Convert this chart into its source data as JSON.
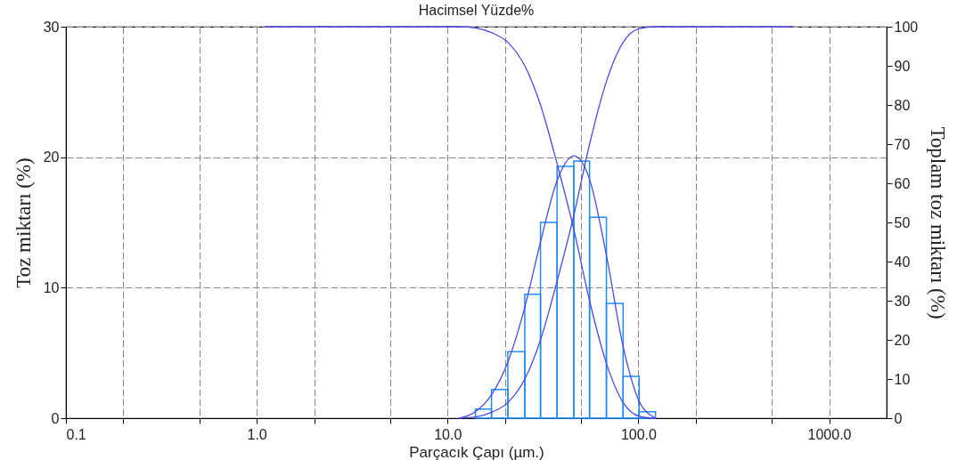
{
  "chart_data": {
    "type": "histogram",
    "title": "Hacimsel Yüzde%",
    "xlabel": "Parçacık Çapı (µm.)",
    "ylabel": "Toz miktarı (%)",
    "y2label": "Toplam toz miktarı (%)",
    "log": "x",
    "grid": true,
    "xlim": [
      0.1,
      2000
    ],
    "xticks": [
      {
        "value": 0.1,
        "label": "0.1"
      },
      {
        "value": 0.2,
        "label": null
      },
      {
        "value": 0.5,
        "label": null
      },
      {
        "value": 1,
        "label": "1.0"
      },
      {
        "value": 2,
        "label": null
      },
      {
        "value": 5,
        "label": null
      },
      {
        "value": 10,
        "label": "10.0"
      },
      {
        "value": 20,
        "label": null
      },
      {
        "value": 50,
        "label": null
      },
      {
        "value": 100,
        "label": "100.0"
      },
      {
        "value": 200,
        "label": null
      },
      {
        "value": 500,
        "label": null
      },
      {
        "value": 1000,
        "label": "1000.0"
      }
    ],
    "ylim": [
      0,
      30
    ],
    "yticks": [
      0,
      10,
      20,
      30
    ],
    "y2lim": [
      0,
      100
    ],
    "y2ticks": [
      0,
      10,
      20,
      30,
      40,
      50,
      60,
      70,
      80,
      90,
      100
    ],
    "series": [
      {
        "color": "#1e8cff",
        "bins": [
          14,
          17,
          20.7,
          25.4,
          30.7,
          37.5,
          45.9,
          55.5,
          68,
          83.2,
          101,
          123
        ],
        "values": [
          0.7,
          2.2,
          5.1,
          9.5,
          15.0,
          19.3,
          19.7,
          15.4,
          8.8,
          3.2,
          0.5
        ]
      },
      {
        "type": "line",
        "color": "#4a4ae6",
        "x": [
          11.5,
          14,
          17,
          20.7,
          25.4,
          30.7,
          37.5,
          46,
          55.5,
          68,
          83.2,
          101,
          123
        ],
        "values": [
          0,
          0.5,
          1.8,
          4.3,
          8.5,
          13.5,
          18.2,
          20.1,
          18.3,
          12.5,
          5.5,
          1.3,
          0
        ]
      },
      {
        "type": "line",
        "axis": "y2",
        "color": "#4a4ae6",
        "x": [
          11.5,
          14,
          17,
          20.7,
          25.4,
          30.7,
          37.5,
          46,
          55.5,
          68,
          83.2,
          101,
          123,
          650
        ],
        "values": [
          0,
          0.3,
          1.5,
          4,
          10,
          20,
          35,
          52,
          70,
          86,
          96,
          99.5,
          100,
          100
        ]
      },
      {
        "type": "line",
        "axis": "y2",
        "color": "#4a4ae6",
        "x": [
          1.1,
          11.5,
          14,
          17,
          20.7,
          25.4,
          30.7,
          37.5,
          46,
          55.5,
          68,
          83.2,
          101,
          123
        ],
        "values": [
          100,
          100,
          99.7,
          98.5,
          96,
          90,
          80,
          65,
          48,
          30,
          14,
          4,
          0.5,
          0
        ]
      }
    ]
  }
}
